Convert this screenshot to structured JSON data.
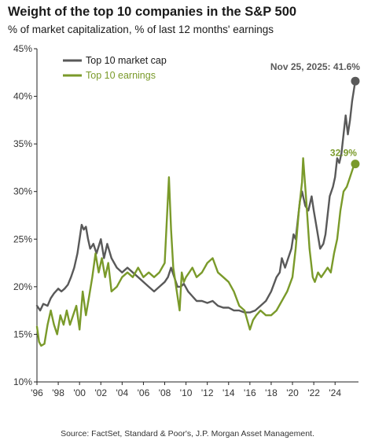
{
  "title": "Weight of the top 10 companies in the S&P 500",
  "subtitle": "% of market capitalization, % of last 12 months' earnings",
  "source": "Source: FactSet, Standard & Poor's, J.P. Morgan Asset Management.",
  "colors": {
    "market_cap": "#595959",
    "earnings": "#7a9a2a",
    "axis": "#222222"
  },
  "chart_data": {
    "type": "line",
    "x_tick_labels": [
      "'96",
      "'98",
      "'00",
      "'02",
      "'04",
      "'06",
      "'08",
      "'10",
      "'12",
      "'14",
      "'16",
      "'18",
      "'20",
      "'22",
      "'24"
    ],
    "x_tick_years": [
      1996,
      1998,
      2000,
      2002,
      2004,
      2006,
      2008,
      2010,
      2012,
      2014,
      2016,
      2018,
      2020,
      2022,
      2024
    ],
    "xlim": [
      1996,
      2026.2
    ],
    "y_tick_labels": [
      "10%",
      "15%",
      "20%",
      "25%",
      "30%",
      "35%",
      "40%",
      "45%"
    ],
    "y_ticks": [
      10,
      15,
      20,
      25,
      30,
      35,
      40,
      45
    ],
    "ylim": [
      10,
      45
    ],
    "grid": false,
    "legend_position": "top-left",
    "series": [
      {
        "name": "Top 10 market cap",
        "color": "#595959",
        "x": [
          1996.0,
          1996.3,
          1996.6,
          1997.0,
          1997.3,
          1997.6,
          1998.0,
          1998.3,
          1998.6,
          1998.9,
          1999.2,
          1999.5,
          1999.8,
          2000.0,
          2000.2,
          2000.4,
          2000.6,
          2000.8,
          2001.0,
          2001.3,
          2001.6,
          2002.0,
          2002.3,
          2002.6,
          2003.0,
          2003.5,
          2004.0,
          2004.5,
          2005.0,
          2005.5,
          2006.0,
          2006.5,
          2007.0,
          2007.5,
          2008.0,
          2008.3,
          2008.6,
          2008.9,
          2009.2,
          2009.5,
          2009.8,
          2010.2,
          2010.6,
          2011.0,
          2011.5,
          2012.0,
          2012.5,
          2013.0,
          2013.5,
          2014.0,
          2014.5,
          2015.0,
          2015.5,
          2016.0,
          2016.5,
          2017.0,
          2017.5,
          2018.0,
          2018.5,
          2018.8,
          2019.0,
          2019.3,
          2019.6,
          2019.9,
          2020.1,
          2020.3,
          2020.5,
          2020.7,
          2020.9,
          2021.2,
          2021.5,
          2021.8,
          2022.0,
          2022.3,
          2022.6,
          2022.9,
          2023.1,
          2023.3,
          2023.5,
          2023.8,
          2024.0,
          2024.2,
          2024.4,
          2024.6,
          2024.8,
          2025.0,
          2025.2,
          2025.4,
          2025.6,
          2025.9
        ],
        "y": [
          18.0,
          17.5,
          18.2,
          18.0,
          18.8,
          19.3,
          19.8,
          19.5,
          19.8,
          20.2,
          21.0,
          22.0,
          23.5,
          25.0,
          26.5,
          26.0,
          26.3,
          25.0,
          24.0,
          24.5,
          23.5,
          25.0,
          23.0,
          24.5,
          23.0,
          22.0,
          21.5,
          22.0,
          21.5,
          21.0,
          20.5,
          20.0,
          19.5,
          20.0,
          20.5,
          21.0,
          22.0,
          21.0,
          20.0,
          20.0,
          20.3,
          19.5,
          19.0,
          18.5,
          18.5,
          18.3,
          18.5,
          18.0,
          17.8,
          17.8,
          17.5,
          17.5,
          17.3,
          17.3,
          17.5,
          18.0,
          18.5,
          19.5,
          21.0,
          21.5,
          23.0,
          22.0,
          23.0,
          24.0,
          25.5,
          25.0,
          27.0,
          29.0,
          30.0,
          28.5,
          28.0,
          29.5,
          28.0,
          26.0,
          24.0,
          24.5,
          25.5,
          27.5,
          29.5,
          30.5,
          31.5,
          33.5,
          33.0,
          34.0,
          36.0,
          38.0,
          36.0,
          37.5,
          39.5,
          41.6
        ]
      },
      {
        "name": "Top 10 earnings",
        "color": "#7a9a2a",
        "x": [
          1996.0,
          1996.2,
          1996.4,
          1996.7,
          1997.0,
          1997.3,
          1997.6,
          1997.9,
          1998.2,
          1998.5,
          1998.8,
          1999.1,
          1999.4,
          1999.7,
          2000.0,
          2000.3,
          2000.6,
          2000.9,
          2001.2,
          2001.5,
          2001.8,
          2002.1,
          2002.4,
          2002.7,
          2003.0,
          2003.5,
          2004.0,
          2004.5,
          2005.0,
          2005.5,
          2006.0,
          2006.5,
          2007.0,
          2007.5,
          2008.0,
          2008.2,
          2008.4,
          2008.6,
          2008.8,
          2009.0,
          2009.2,
          2009.4,
          2009.6,
          2009.8,
          2010.0,
          2010.3,
          2010.6,
          2011.0,
          2011.5,
          2012.0,
          2012.5,
          2013.0,
          2013.5,
          2014.0,
          2014.5,
          2015.0,
          2015.5,
          2016.0,
          2016.3,
          2016.6,
          2017.0,
          2017.5,
          2018.0,
          2018.5,
          2019.0,
          2019.5,
          2020.0,
          2020.3,
          2020.6,
          2020.9,
          2021.0,
          2021.3,
          2021.6,
          2021.9,
          2022.1,
          2022.4,
          2022.7,
          2023.0,
          2023.3,
          2023.6,
          2023.9,
          2024.2,
          2024.5,
          2024.8,
          2025.1,
          2025.4,
          2025.7,
          2025.9
        ],
        "y": [
          15.8,
          14.2,
          13.8,
          14.0,
          16.0,
          17.5,
          16.0,
          15.0,
          17.0,
          16.0,
          17.5,
          16.0,
          17.0,
          18.0,
          15.5,
          19.5,
          17.0,
          19.0,
          21.0,
          23.5,
          21.5,
          23.0,
          21.0,
          22.5,
          19.5,
          20.0,
          21.0,
          21.5,
          21.0,
          22.0,
          21.0,
          21.5,
          21.0,
          21.5,
          22.5,
          27.0,
          31.5,
          26.0,
          22.0,
          20.5,
          19.0,
          17.5,
          21.5,
          20.5,
          21.0,
          21.5,
          22.0,
          21.0,
          21.5,
          22.5,
          23.0,
          21.5,
          21.0,
          20.5,
          19.5,
          18.0,
          17.5,
          15.5,
          16.5,
          17.0,
          17.5,
          17.0,
          17.0,
          17.5,
          18.5,
          19.5,
          21.0,
          24.0,
          28.0,
          31.0,
          33.5,
          29.0,
          24.0,
          21.0,
          20.5,
          21.5,
          21.0,
          21.5,
          22.0,
          21.5,
          23.5,
          25.0,
          28.0,
          30.0,
          30.5,
          31.5,
          32.5,
          32.9
        ]
      }
    ],
    "annotations": [
      {
        "text": "Nov 25, 2025: 41.6%",
        "x": 2025.9,
        "y": 41.6,
        "series": "Top 10 market cap"
      },
      {
        "text": "32.9%",
        "x": 2025.9,
        "y": 32.9,
        "series": "Top 10 earnings"
      }
    ]
  }
}
